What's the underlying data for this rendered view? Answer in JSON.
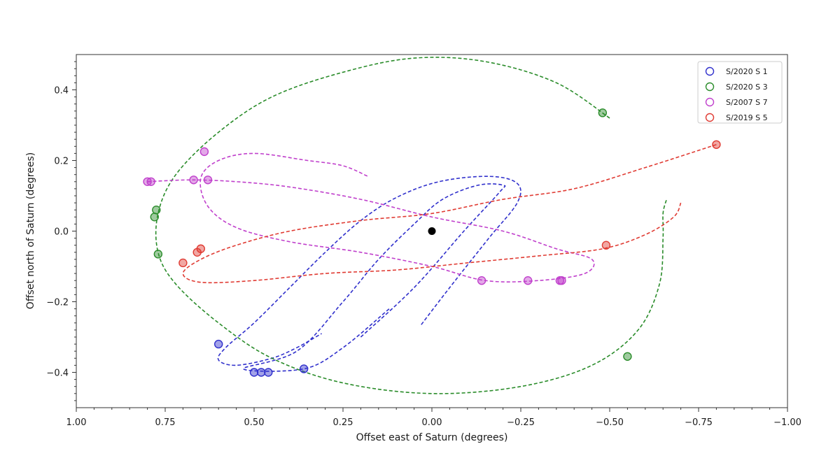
{
  "chart_data": {
    "type": "scatter",
    "title": "",
    "xlabel": "Offset east of Saturn (degrees)",
    "ylabel": "Offset north of Saturn (degrees)",
    "xlim": [
      1.0,
      -1.0
    ],
    "ylim": [
      -0.5,
      0.5
    ],
    "x_ticks": [
      1.0,
      0.75,
      0.5,
      0.25,
      0.0,
      -0.25,
      -0.5,
      -0.75,
      -1.0
    ],
    "x_tick_labels": [
      "1.00",
      "0.75",
      "0.50",
      "0.25",
      "0.00",
      "−0.25",
      "−0.50",
      "−0.75",
      "−1.00"
    ],
    "y_ticks": [
      0.4,
      0.2,
      0.0,
      -0.2,
      -0.4
    ],
    "y_tick_labels": [
      "0.4",
      "0.2",
      "0.0",
      "−0.2",
      "−0.4"
    ],
    "grid": false,
    "legend_position": "top-right",
    "center": {
      "name": "Saturn",
      "x": 0.0,
      "y": 0.0,
      "color": "#000000"
    },
    "series": [
      {
        "name": "S/2020 S 1",
        "color": "#3030cc",
        "orbit": [
          [
            0.03,
            -0.265
          ],
          [
            -0.05,
            -0.16
          ],
          [
            -0.16,
            -0.02
          ],
          [
            -0.24,
            0.08
          ],
          [
            -0.24,
            0.135
          ],
          [
            -0.16,
            0.155
          ],
          [
            -0.02,
            0.14
          ],
          [
            0.1,
            0.095
          ],
          [
            0.2,
            0.03
          ],
          [
            0.3,
            -0.06
          ],
          [
            0.4,
            -0.16
          ],
          [
            0.5,
            -0.26
          ],
          [
            0.58,
            -0.33
          ],
          [
            0.6,
            -0.365
          ],
          [
            0.55,
            -0.38
          ],
          [
            0.45,
            -0.36
          ],
          [
            0.38,
            -0.33
          ],
          [
            0.31,
            -0.29
          ]
        ],
        "orbit2": [
          [
            0.2,
            -0.3
          ],
          [
            0.05,
            -0.16
          ],
          [
            -0.09,
            0.0
          ],
          [
            -0.19,
            0.11
          ],
          [
            -0.2,
            0.13
          ],
          [
            -0.13,
            0.13
          ],
          [
            -0.03,
            0.09
          ],
          [
            0.05,
            0.02
          ],
          [
            0.15,
            -0.08
          ],
          [
            0.25,
            -0.2
          ],
          [
            0.38,
            -0.34
          ],
          [
            0.53,
            -0.39
          ],
          [
            0.36,
            -0.39
          ],
          [
            0.25,
            -0.33
          ],
          [
            0.12,
            -0.22
          ]
        ],
        "points": [
          [
            0.6,
            -0.32
          ],
          [
            0.5,
            -0.4
          ],
          [
            0.48,
            -0.4
          ],
          [
            0.46,
            -0.4
          ],
          [
            0.36,
            -0.39
          ]
        ]
      },
      {
        "name": "S/2020 S 3",
        "color": "#2a8c2a",
        "orbit": [
          [
            -0.5,
            0.32
          ],
          [
            -0.35,
            0.42
          ],
          [
            -0.15,
            0.48
          ],
          [
            0.05,
            0.49
          ],
          [
            0.25,
            0.45
          ],
          [
            0.45,
            0.38
          ],
          [
            0.6,
            0.28
          ],
          [
            0.72,
            0.16
          ],
          [
            0.77,
            0.05
          ],
          [
            0.77,
            -0.06
          ],
          [
            0.72,
            -0.15
          ],
          [
            0.6,
            -0.26
          ],
          [
            0.45,
            -0.36
          ],
          [
            0.25,
            -0.43
          ],
          [
            0.0,
            -0.46
          ],
          [
            -0.25,
            -0.44
          ],
          [
            -0.45,
            -0.38
          ],
          [
            -0.58,
            -0.28
          ],
          [
            -0.64,
            -0.15
          ],
          [
            -0.65,
            -0.02
          ],
          [
            -0.65,
            0.05
          ],
          [
            -0.66,
            0.09
          ]
        ],
        "points": [
          [
            -0.48,
            0.335
          ],
          [
            0.775,
            0.06
          ],
          [
            0.78,
            0.04
          ],
          [
            0.77,
            -0.065
          ],
          [
            -0.55,
            -0.355
          ]
        ]
      },
      {
        "name": "S/2007 S 7",
        "color": "#c040cc",
        "orbit": [
          [
            0.8,
            0.14
          ],
          [
            0.68,
            0.145
          ],
          [
            0.55,
            0.14
          ],
          [
            0.4,
            0.125
          ],
          [
            0.2,
            0.09
          ],
          [
            0.0,
            0.04
          ],
          [
            -0.2,
            0.0
          ],
          [
            -0.35,
            -0.05
          ],
          [
            -0.45,
            -0.08
          ],
          [
            -0.43,
            -0.12
          ],
          [
            -0.3,
            -0.14
          ],
          [
            -0.15,
            -0.14
          ],
          [
            0.0,
            -0.1
          ],
          [
            0.2,
            -0.06
          ],
          [
            0.4,
            -0.03
          ],
          [
            0.55,
            0.01
          ],
          [
            0.63,
            0.07
          ],
          [
            0.65,
            0.15
          ],
          [
            0.6,
            0.2
          ],
          [
            0.5,
            0.22
          ],
          [
            0.35,
            0.2
          ],
          [
            0.25,
            0.185
          ],
          [
            0.18,
            0.155
          ]
        ],
        "points": [
          [
            0.8,
            0.14
          ],
          [
            0.79,
            0.14
          ],
          [
            0.67,
            0.145
          ],
          [
            0.63,
            0.145
          ],
          [
            0.64,
            0.225
          ],
          [
            -0.14,
            -0.14
          ],
          [
            -0.27,
            -0.14
          ],
          [
            -0.36,
            -0.14
          ],
          [
            -0.365,
            -0.14
          ]
        ]
      },
      {
        "name": "S/2019 S 5",
        "color": "#e03b33",
        "orbit": [
          [
            -0.8,
            0.245
          ],
          [
            -0.6,
            0.18
          ],
          [
            -0.4,
            0.12
          ],
          [
            -0.2,
            0.09
          ],
          [
            0.0,
            0.05
          ],
          [
            0.2,
            0.03
          ],
          [
            0.4,
            0.0
          ],
          [
            0.55,
            -0.04
          ],
          [
            0.65,
            -0.08
          ],
          [
            0.7,
            -0.12
          ],
          [
            0.65,
            -0.145
          ],
          [
            0.5,
            -0.14
          ],
          [
            0.3,
            -0.12
          ],
          [
            0.1,
            -0.11
          ],
          [
            -0.1,
            -0.09
          ],
          [
            -0.3,
            -0.07
          ],
          [
            -0.48,
            -0.05
          ],
          [
            -0.6,
            -0.01
          ],
          [
            -0.68,
            0.04
          ],
          [
            -0.7,
            0.08
          ]
        ],
        "points": [
          [
            -0.8,
            0.245
          ],
          [
            0.65,
            -0.05
          ],
          [
            0.66,
            -0.06
          ],
          [
            0.7,
            -0.09
          ],
          [
            -0.49,
            -0.04
          ]
        ]
      }
    ]
  }
}
